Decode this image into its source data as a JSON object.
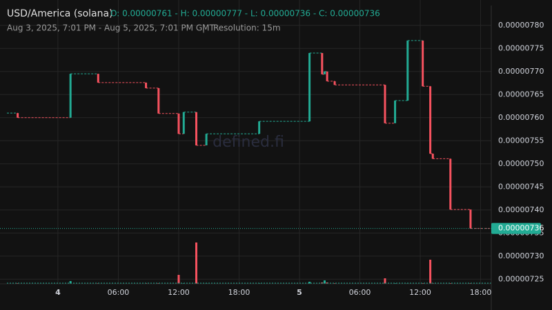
{
  "chart_data": {
    "type": "candlestick",
    "title": "USD/America (solana)",
    "ohlc_text": "O: 0.00000761 - H: 0.00000777 - L: 0.00000736 - C: 0.00000736",
    "subtitle": "Aug 3, 2025, 7:01 PM - Aug 5, 2025, 7:01 PM GMT",
    "separator": "|",
    "resolution": "Resolution: 15m",
    "watermark": "defined.fi",
    "last_price_label": "0.00000736",
    "up_color": "#22ab94",
    "down_color": "#f7525f",
    "grid": true,
    "x": [
      20.0,
      25.25,
      28.0,
      32.75,
      34.0,
      36.0,
      36.5,
      37.75,
      38.75,
      44.0,
      49.0,
      50.25,
      50.5,
      50.75,
      51.5,
      56.5,
      57.5,
      58.75,
      60.25,
      61.0,
      61.25,
      63.0,
      65.0
    ],
    "open": [
      7.61e-06,
      7.6e-06,
      7.695e-06,
      7.676e-06,
      7.664e-06,
      7.609e-06,
      7.565e-06,
      7.612e-06,
      7.54e-06,
      7.565e-06,
      7.592e-06,
      7.74e-06,
      7.694e-06,
      7.7e-06,
      7.679e-06,
      7.671e-06,
      7.588e-06,
      7.637e-06,
      7.767e-06,
      7.668e-06,
      7.522e-06,
      7.511e-06,
      7.401e-06
    ],
    "close": [
      7.6e-06,
      7.695e-06,
      7.676e-06,
      7.664e-06,
      7.609e-06,
      7.565e-06,
      7.612e-06,
      7.54e-06,
      7.565e-06,
      7.592e-06,
      7.74e-06,
      7.694e-06,
      7.7e-06,
      7.679e-06,
      7.671e-06,
      7.588e-06,
      7.637e-06,
      7.767e-06,
      7.668e-06,
      7.522e-06,
      7.511e-06,
      7.401e-06,
      7.36e-06
    ],
    "volume": [
      1,
      4,
      1,
      1,
      1,
      13,
      1,
      60,
      1,
      1,
      3,
      2,
      5,
      2,
      1,
      8,
      1,
      1,
      1,
      35,
      1,
      1,
      1
    ],
    "xlim": [
      18.93,
      67.06
    ],
    "ylim": [
      7.24e-06,
      7.843e-06
    ],
    "xticks": [
      {
        "value": 24,
        "label": "4"
      },
      {
        "value": 30,
        "label": "06:00"
      },
      {
        "value": 36,
        "label": "12:00"
      },
      {
        "value": 42,
        "label": "18:00"
      },
      {
        "value": 48,
        "label": "5"
      },
      {
        "value": 54,
        "label": "06:00"
      },
      {
        "value": 60,
        "label": "12:00"
      },
      {
        "value": 66,
        "label": "18:00"
      }
    ],
    "yticks": [
      {
        "value": 7.25e-06,
        "label": "0.00000725"
      },
      {
        "value": 7.3e-06,
        "label": "0.00000730"
      },
      {
        "value": 7.35e-06,
        "label": "0.00000735"
      },
      {
        "value": 7.4e-06,
        "label": "0.00000740"
      },
      {
        "value": 7.45e-06,
        "label": "0.00000745"
      },
      {
        "value": 7.5e-06,
        "label": "0.00000750"
      },
      {
        "value": 7.55e-06,
        "label": "0.00000755"
      },
      {
        "value": 7.6e-06,
        "label": "0.00000760"
      },
      {
        "value": 7.65e-06,
        "label": "0.00000765"
      },
      {
        "value": 7.7e-06,
        "label": "0.00000770"
      },
      {
        "value": 7.75e-06,
        "label": "0.00000775"
      },
      {
        "value": 7.8e-06,
        "label": "0.00000780"
      }
    ]
  }
}
